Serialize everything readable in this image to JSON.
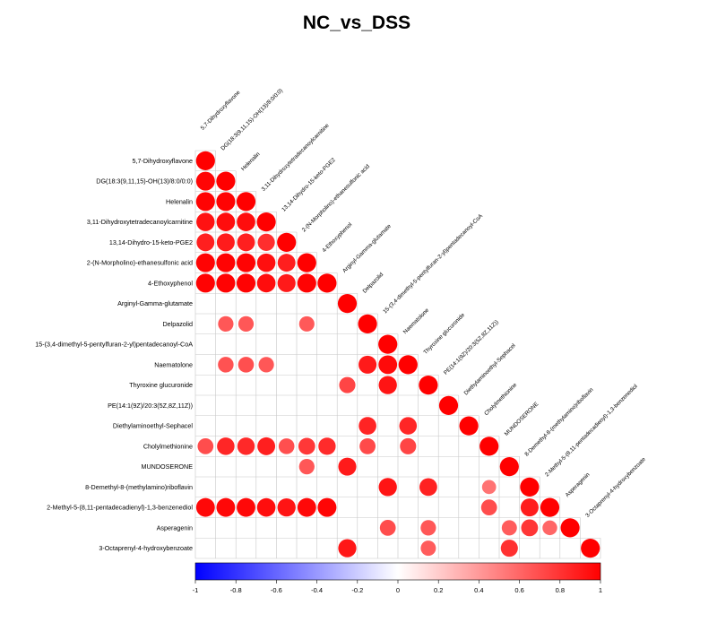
{
  "chart_data": {
    "type": "heatmap",
    "title": "NC_vs_DSS",
    "labels": [
      "5,7-Dihydroxyflavone",
      "DG(18:3(9,11,15)-OH(13)/8:0/0:0)",
      "Helenalin",
      "3,11-Dihydroxytetradecanoylcarnitine",
      "13,14-Dihydro-15-keto-PGE2",
      "2-(N-Morpholino)-ethanesulfonic acid",
      "4-Ethoxyphenol",
      "Arginyl-Gamma-glutamate",
      "Delpazolid",
      "15-(3,4-dimethyl-5-pentylfuran-2-yl)pentadecanoyl-CoA",
      "Naematolone",
      "Thyroxine glucuronide",
      "PE(14:1(9Z)/20:3(5Z,8Z,11Z))",
      "Diethylaminoethyl-Sephacel",
      "Cholylmethionine",
      "MUNDOSERONE",
      "8-Demethyl-8-(methylamino)riboflavin",
      "2-Methyl-5-(8,11-pentadecadienyl)-1,3-benzenediol",
      "Asperagenin",
      "3-Octaprenyl-4-hydroxybenzoate"
    ],
    "column_labels": [
      "5,7-Dihydroxyflavone",
      "DG(18:3(9,11,15)-OH(13)/8:0/0:0)",
      "Helenalin",
      "3,11-Dihydroxytetradecanoylcarnitine",
      "13,14-Dihydro-15-keto-PGE2",
      "2-(N-Morpholino)-ethanesulfonic acid",
      "4-Ethoxyphenol",
      "Arginyl-Gamma-glutamate",
      "Delpazolid",
      "15-(3,4-dimethyl-5-pentylfuran-2-yl)pentadecanoyl-CoA",
      "Naematolone",
      "Thyroxine glucuronide",
      "PE(14:1(9Z)/20:3(5Z,8Z,11Z))",
      "Diethylaminoethyl-Sephacel",
      "Cholylmethionine",
      "MUNDOSERONE",
      "8-Demethyl-8-(methylamino)riboflavin",
      "2-Methyl-5-(8,11-pentadecadienyl)-1,3-benzenediol",
      "Asperagenin",
      "3-Octaprenyl-4-hydroxybenzoate"
    ],
    "cells": [
      [
        0,
        0,
        1.0
      ],
      [
        1,
        0,
        0.98
      ],
      [
        1,
        1,
        1.0
      ],
      [
        2,
        0,
        0.99
      ],
      [
        2,
        1,
        0.99
      ],
      [
        2,
        2,
        1.0
      ],
      [
        3,
        0,
        0.93
      ],
      [
        3,
        1,
        0.95
      ],
      [
        3,
        2,
        0.95
      ],
      [
        3,
        3,
        1.0
      ],
      [
        4,
        0,
        0.88
      ],
      [
        4,
        1,
        0.89
      ],
      [
        4,
        2,
        0.88
      ],
      [
        4,
        3,
        0.82
      ],
      [
        4,
        4,
        1.0
      ],
      [
        5,
        0,
        0.99
      ],
      [
        5,
        1,
        0.99
      ],
      [
        5,
        2,
        0.99
      ],
      [
        5,
        3,
        0.94
      ],
      [
        5,
        4,
        0.88
      ],
      [
        5,
        5,
        1.0
      ],
      [
        6,
        0,
        0.99
      ],
      [
        6,
        1,
        0.99
      ],
      [
        6,
        2,
        0.99
      ],
      [
        6,
        3,
        0.95
      ],
      [
        6,
        4,
        0.9
      ],
      [
        6,
        5,
        0.99
      ],
      [
        6,
        6,
        1.0
      ],
      [
        7,
        7,
        1.0
      ],
      [
        8,
        1,
        0.66
      ],
      [
        8,
        2,
        0.66
      ],
      [
        8,
        5,
        0.65
      ],
      [
        8,
        8,
        1.0
      ],
      [
        9,
        9,
        1.0
      ],
      [
        10,
        1,
        0.68
      ],
      [
        10,
        2,
        0.69
      ],
      [
        10,
        3,
        0.66
      ],
      [
        10,
        8,
        0.9
      ],
      [
        10,
        9,
        0.96
      ],
      [
        10,
        10,
        1.0
      ],
      [
        11,
        7,
        0.73
      ],
      [
        11,
        9,
        0.92
      ],
      [
        11,
        11,
        1.0
      ],
      [
        12,
        12,
        1.0
      ],
      [
        13,
        8,
        0.86
      ],
      [
        13,
        10,
        0.85
      ],
      [
        13,
        13,
        1.0
      ],
      [
        14,
        0,
        0.7
      ],
      [
        14,
        1,
        0.85
      ],
      [
        14,
        2,
        0.84
      ],
      [
        14,
        3,
        0.88
      ],
      [
        14,
        4,
        0.69
      ],
      [
        14,
        5,
        0.78
      ],
      [
        14,
        6,
        0.83
      ],
      [
        14,
        8,
        0.71
      ],
      [
        14,
        10,
        0.73
      ],
      [
        14,
        14,
        1.0
      ],
      [
        15,
        5,
        0.66
      ],
      [
        15,
        7,
        0.9
      ],
      [
        15,
        15,
        1.0
      ],
      [
        16,
        9,
        0.92
      ],
      [
        16,
        11,
        0.87
      ],
      [
        16,
        14,
        0.55
      ],
      [
        16,
        16,
        1.0
      ],
      [
        17,
        0,
        0.97
      ],
      [
        17,
        1,
        0.97
      ],
      [
        17,
        2,
        0.97
      ],
      [
        17,
        3,
        0.95
      ],
      [
        17,
        4,
        0.92
      ],
      [
        17,
        5,
        0.97
      ],
      [
        17,
        6,
        0.98
      ],
      [
        17,
        14,
        0.7
      ],
      [
        17,
        16,
        0.89
      ],
      [
        17,
        17,
        1.0
      ],
      [
        18,
        9,
        0.7
      ],
      [
        18,
        11,
        0.66
      ],
      [
        18,
        15,
        0.64
      ],
      [
        18,
        16,
        0.79
      ],
      [
        18,
        17,
        0.6
      ],
      [
        18,
        18,
        1.0
      ],
      [
        19,
        7,
        0.91
      ],
      [
        19,
        11,
        0.64
      ],
      [
        19,
        15,
        0.81
      ],
      [
        19,
        19,
        1.0
      ]
    ],
    "colorbar": {
      "ticks": [
        "-1",
        "-0.8",
        "-0.6",
        "-0.4",
        "-0.2",
        "0",
        "0.2",
        "0.4",
        "0.6",
        "0.8",
        "1"
      ],
      "range": [
        -1,
        1
      ],
      "colors": {
        "low": "#0000ff",
        "mid": "#ffffff",
        "high": "#ff0000"
      }
    }
  }
}
